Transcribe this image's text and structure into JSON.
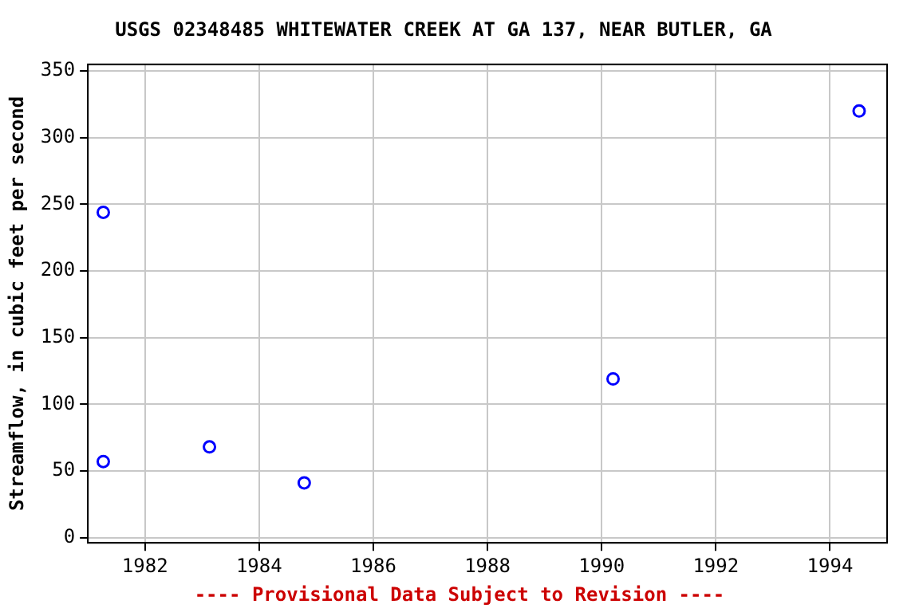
{
  "chart_data": {
    "type": "scatter",
    "title": "USGS 02348485 WHITEWATER CREEK AT GA 137, NEAR BUTLER, GA",
    "ylabel": "Streamflow, in cubic feet per second",
    "x": [
      1981.27,
      1981.27,
      1983.13,
      1984.79,
      1990.2,
      1994.51
    ],
    "series": [
      {
        "color": "#0000ff",
        "values": [
          244,
          57,
          68,
          41,
          119,
          320
        ]
      }
    ],
    "xlim": [
      1981,
      1995
    ],
    "xticks": [
      1982,
      1984,
      1986,
      1988,
      1990,
      1992,
      1994
    ],
    "ylim": [
      -4,
      355
    ],
    "yticks": [
      0,
      50,
      100,
      150,
      200,
      250,
      300,
      350
    ],
    "grid": true,
    "legend": false,
    "marker": "circle",
    "annotations": [
      "---- Provisional Data Subject to Revision ----"
    ]
  }
}
